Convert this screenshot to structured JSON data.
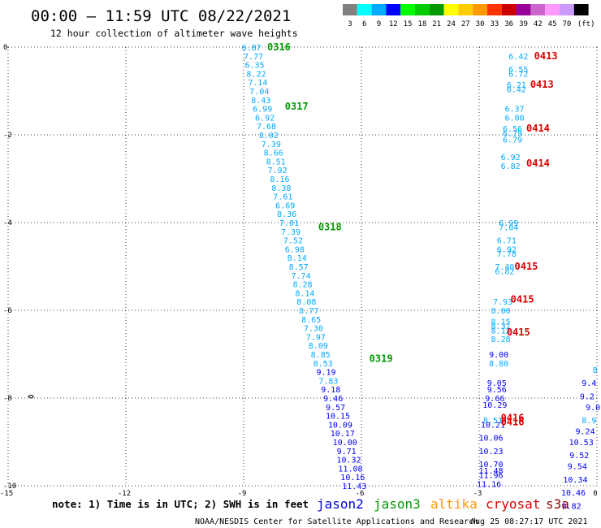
{
  "header": {
    "title": "00:00 – 11:59 UTC 08/22/2021",
    "subtitle": "12 hour collection of altimeter wave heights"
  },
  "colorbar": {
    "colors": [
      "#808080",
      "#00ffff",
      "#00aaff",
      "#0000ff",
      "#00ff00",
      "#00cc00",
      "#009900",
      "#ffff00",
      "#ffcc00",
      "#ff9900",
      "#ff3300",
      "#cc0000",
      "#990099",
      "#cc66cc",
      "#ff99ff",
      "#cc99ff",
      "#000000"
    ],
    "labels": [
      "3",
      "6",
      "9",
      "12",
      "15",
      "18",
      "21",
      "24",
      "27",
      "30",
      "33",
      "36",
      "39",
      "42",
      "45",
      "70",
      "(ft)"
    ]
  },
  "footer": {
    "note": "note:  1) Time is in UTC; 2) SWH is in feet",
    "credit": "NOAA/NESDIS Center for Satellite Applications and Research",
    "timestamp": "Aug 25 08:27:17 UTC 2021",
    "legend": [
      {
        "name": "jason2",
        "color": "#0000dd"
      },
      {
        "name": "jason3",
        "color": "#009900"
      },
      {
        "name": "altika",
        "color": "#ff9900"
      },
      {
        "name": "cryosat",
        "color": "#dd0000"
      },
      {
        "name": "s3a",
        "color": "#990000"
      }
    ]
  },
  "chart_data": {
    "type": "scatter",
    "xlim": [
      -15,
      0
    ],
    "ylim": [
      0,
      -10
    ],
    "xticks": [
      "-15",
      "-12",
      "-9",
      "-6",
      "-3",
      "0"
    ],
    "yticks": [
      "0",
      "-2",
      "-4",
      "-6",
      "-8",
      "-10"
    ],
    "grid": true,
    "series": [
      {
        "name": "jason3",
        "track_labels": [
          {
            "text": "0316",
            "x": -8.4,
            "y": 0.0
          },
          {
            "text": "0317",
            "x": -7.95,
            "y": -1.35
          },
          {
            "text": "0318",
            "x": -7.1,
            "y": -4.1
          },
          {
            "text": "0319",
            "x": -5.8,
            "y": -7.1
          }
        ],
        "points": [
          {
            "x": -8.8,
            "y": 0.0,
            "v": "6.87"
          },
          {
            "x": -8.75,
            "y": -0.2,
            "v": "7.77"
          },
          {
            "x": -8.72,
            "y": -0.4,
            "v": "6.35"
          },
          {
            "x": -8.68,
            "y": -0.6,
            "v": "8.22"
          },
          {
            "x": -8.64,
            "y": -0.8,
            "v": "7.14"
          },
          {
            "x": -8.6,
            "y": -1.0,
            "v": "7.04"
          },
          {
            "x": -8.56,
            "y": -1.2,
            "v": "8.43"
          },
          {
            "x": -8.52,
            "y": -1.4,
            "v": "6.99"
          },
          {
            "x": -8.46,
            "y": -1.6,
            "v": "6.92"
          },
          {
            "x": -8.42,
            "y": -1.8,
            "v": "7.68"
          },
          {
            "x": -8.36,
            "y": -2.0,
            "v": "8.02"
          },
          {
            "x": -8.3,
            "y": -2.2,
            "v": "7.39"
          },
          {
            "x": -8.24,
            "y": -2.4,
            "v": "8.66"
          },
          {
            "x": -8.18,
            "y": -2.6,
            "v": "8.51"
          },
          {
            "x": -8.14,
            "y": -2.8,
            "v": "7.92"
          },
          {
            "x": -8.08,
            "y": -3.0,
            "v": "8.16"
          },
          {
            "x": -8.04,
            "y": -3.2,
            "v": "8.38"
          },
          {
            "x": -8.0,
            "y": -3.4,
            "v": "7.61"
          },
          {
            "x": -7.94,
            "y": -3.6,
            "v": "6.69"
          },
          {
            "x": -7.9,
            "y": -3.8,
            "v": "8.36"
          },
          {
            "x": -7.84,
            "y": -4.0,
            "v": "7.01"
          },
          {
            "x": -7.8,
            "y": -4.2,
            "v": "7.39"
          },
          {
            "x": -7.74,
            "y": -4.4,
            "v": "7.52"
          },
          {
            "x": -7.7,
            "y": -4.6,
            "v": "6.98"
          },
          {
            "x": -7.64,
            "y": -4.8,
            "v": "8.14"
          },
          {
            "x": -7.6,
            "y": -5.0,
            "v": "8.57"
          },
          {
            "x": -7.54,
            "y": -5.2,
            "v": "7.74"
          },
          {
            "x": -7.5,
            "y": -5.4,
            "v": "8.28"
          },
          {
            "x": -7.44,
            "y": -5.6,
            "v": "8.14"
          },
          {
            "x": -7.4,
            "y": -5.8,
            "v": "8.08"
          },
          {
            "x": -7.34,
            "y": -6.0,
            "v": "8.77"
          },
          {
            "x": -7.28,
            "y": -6.2,
            "v": "8.65"
          },
          {
            "x": -7.22,
            "y": -6.4,
            "v": "7.30"
          },
          {
            "x": -7.16,
            "y": -6.6,
            "v": "7.97"
          },
          {
            "x": -7.1,
            "y": -6.8,
            "v": "8.09"
          },
          {
            "x": -7.04,
            "y": -7.0,
            "v": "8.85"
          },
          {
            "x": -6.98,
            "y": -7.2,
            "v": "8.53"
          },
          {
            "x": -6.9,
            "y": -7.4,
            "v": "9.19"
          },
          {
            "x": -6.84,
            "y": -7.6,
            "v": "7.83"
          },
          {
            "x": -6.78,
            "y": -7.8,
            "v": "9.18"
          },
          {
            "x": -6.72,
            "y": -8.0,
            "v": "9.46"
          },
          {
            "x": -6.66,
            "y": -8.2,
            "v": "9.57"
          },
          {
            "x": -6.6,
            "y": -8.4,
            "v": "10.15"
          },
          {
            "x": -6.54,
            "y": -8.6,
            "v": "10.09"
          },
          {
            "x": -6.48,
            "y": -8.8,
            "v": "10.17"
          },
          {
            "x": -6.42,
            "y": -9.0,
            "v": "10.00"
          },
          {
            "x": -6.38,
            "y": -9.2,
            "v": "9.71"
          },
          {
            "x": -6.32,
            "y": -9.4,
            "v": "10.32"
          },
          {
            "x": -6.28,
            "y": -9.6,
            "v": "11.08"
          },
          {
            "x": -6.22,
            "y": -9.8,
            "v": "10.16"
          },
          {
            "x": -6.18,
            "y": -10.0,
            "v": "11.43"
          }
        ]
      },
      {
        "name": "cryosat",
        "track_labels": [
          {
            "text": "0413",
            "x": -1.6,
            "y": -0.2
          },
          {
            "text": "0413",
            "x": -1.7,
            "y": -0.85
          },
          {
            "text": "0414",
            "x": -1.8,
            "y": -1.85
          },
          {
            "text": "0414",
            "x": -1.8,
            "y": -2.65
          },
          {
            "text": "0415",
            "x": -2.1,
            "y": -5.0
          },
          {
            "text": "0415",
            "x": -2.2,
            "y": -5.75
          },
          {
            "text": "0415",
            "x": -2.3,
            "y": -6.5
          },
          {
            "text": "0416",
            "x": -2.45,
            "y": -8.45
          },
          {
            "text": "0416",
            "x": -2.45,
            "y": -8.55
          }
        ],
        "points": [
          {
            "x": -2.0,
            "y": -0.2,
            "v": "6.42"
          },
          {
            "x": -2.0,
            "y": -0.5,
            "v": "6.55"
          },
          {
            "x": -2.0,
            "y": -0.6,
            "v": "6.72"
          },
          {
            "x": -2.05,
            "y": -0.85,
            "v": "6.21"
          },
          {
            "x": -2.05,
            "y": -0.95,
            "v": "6.42"
          },
          {
            "x": -2.1,
            "y": -1.4,
            "v": "6.37"
          },
          {
            "x": -2.1,
            "y": -1.6,
            "v": "6.00"
          },
          {
            "x": -2.15,
            "y": -1.85,
            "v": "6.56"
          },
          {
            "x": -2.15,
            "y": -1.95,
            "v": "6.79"
          },
          {
            "x": -2.15,
            "y": -2.1,
            "v": "6.79"
          },
          {
            "x": -2.2,
            "y": -2.5,
            "v": "6.92"
          },
          {
            "x": -2.2,
            "y": -2.7,
            "v": "6.82"
          },
          {
            "x": -2.25,
            "y": -4.0,
            "v": "6.99"
          },
          {
            "x": -2.25,
            "y": -4.1,
            "v": "7.04"
          },
          {
            "x": -2.3,
            "y": -4.4,
            "v": "6.71"
          },
          {
            "x": -2.3,
            "y": -4.6,
            "v": "6.92"
          },
          {
            "x": -2.3,
            "y": -4.7,
            "v": "7.78"
          },
          {
            "x": -2.35,
            "y": -5.0,
            "v": "7.40"
          },
          {
            "x": -2.35,
            "y": -5.1,
            "v": "6.82"
          },
          {
            "x": -2.4,
            "y": -5.8,
            "v": "7.93"
          },
          {
            "x": -2.45,
            "y": -6.0,
            "v": "8.00"
          },
          {
            "x": -2.45,
            "y": -6.25,
            "v": "8.15"
          },
          {
            "x": -2.45,
            "y": -6.35,
            "v": "8.31"
          },
          {
            "x": -2.45,
            "y": -6.45,
            "v": "8.12"
          },
          {
            "x": -2.45,
            "y": -6.65,
            "v": "8.28"
          },
          {
            "x": -2.5,
            "y": -7.0,
            "v": "9.00"
          },
          {
            "x": -2.5,
            "y": -7.2,
            "v": "8.80"
          },
          {
            "x": -2.55,
            "y": -7.65,
            "v": "9.05"
          },
          {
            "x": -2.55,
            "y": -7.8,
            "v": "9.56"
          },
          {
            "x": -2.6,
            "y": -8.0,
            "v": "9.66"
          },
          {
            "x": -2.6,
            "y": -8.15,
            "v": "10.29"
          },
          {
            "x": -2.65,
            "y": -8.5,
            "v": "8.51"
          },
          {
            "x": -2.65,
            "y": -8.6,
            "v": "10.21"
          },
          {
            "x": -2.7,
            "y": -8.9,
            "v": "10.06"
          },
          {
            "x": -2.7,
            "y": -9.2,
            "v": "10.23"
          },
          {
            "x": -2.7,
            "y": -9.5,
            "v": "10.70"
          },
          {
            "x": -2.7,
            "y": -9.65,
            "v": "11.48"
          },
          {
            "x": -2.7,
            "y": -9.75,
            "v": "11.96"
          },
          {
            "x": -2.75,
            "y": -9.95,
            "v": "11.16"
          }
        ]
      },
      {
        "name": "jason2",
        "track_labels": [],
        "points": [
          {
            "x": -0.05,
            "y": -7.35,
            "v": "8"
          },
          {
            "x": -0.2,
            "y": -7.65,
            "v": "9.4"
          },
          {
            "x": -0.25,
            "y": -7.95,
            "v": "9.2"
          },
          {
            "x": -0.1,
            "y": -8.2,
            "v": "9.0"
          },
          {
            "x": -0.2,
            "y": -8.5,
            "v": "8.9"
          },
          {
            "x": -0.3,
            "y": -8.75,
            "v": "9.24"
          },
          {
            "x": -0.4,
            "y": -9.0,
            "v": "10.53"
          },
          {
            "x": -0.45,
            "y": -9.3,
            "v": "9.52"
          },
          {
            "x": -0.5,
            "y": -9.55,
            "v": "9.54"
          },
          {
            "x": -0.55,
            "y": -9.85,
            "v": "10.34"
          },
          {
            "x": -0.6,
            "y": -10.15,
            "v": "10.46"
          },
          {
            "x": -0.65,
            "y": -10.45,
            "v": "9.82"
          }
        ]
      }
    ]
  }
}
